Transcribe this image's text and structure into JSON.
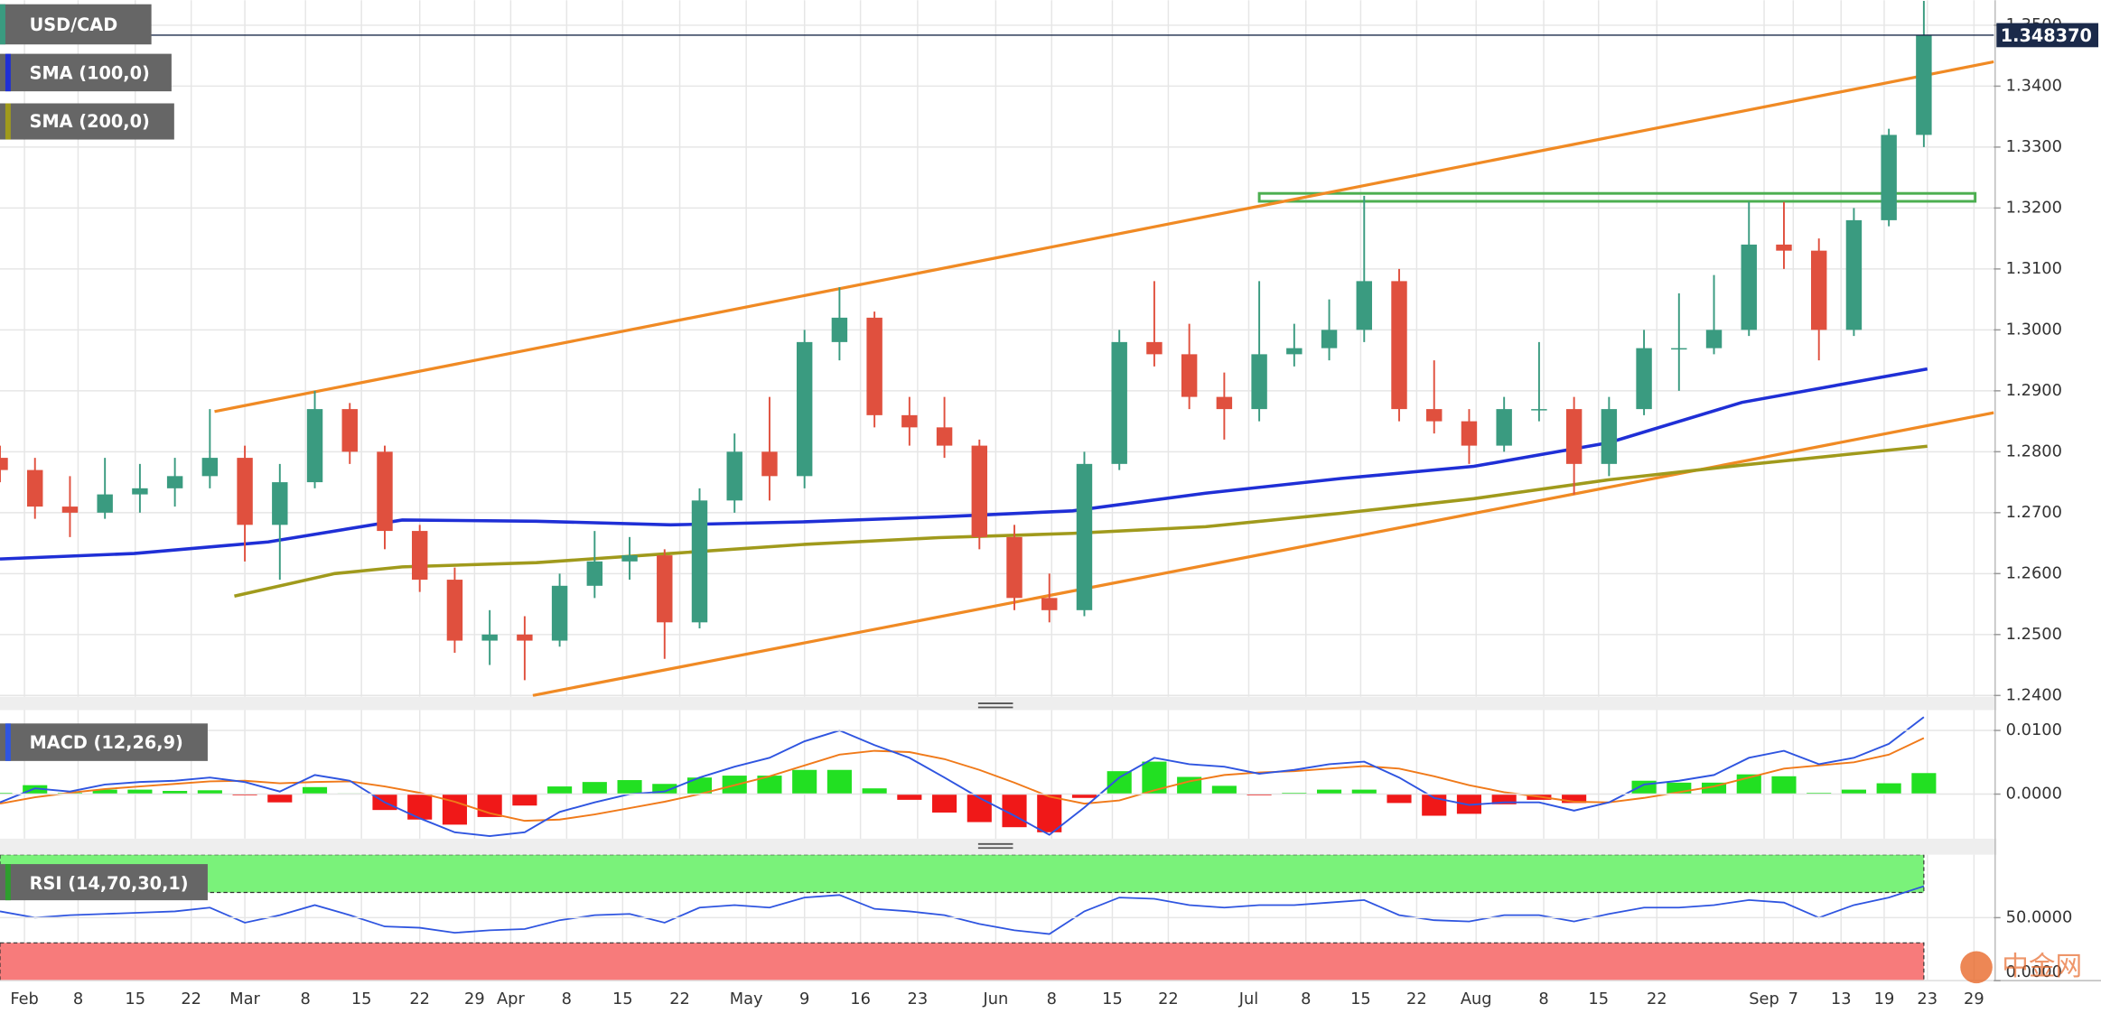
{
  "chart_data": {
    "type": "candlestick",
    "title": "USD/CAD",
    "colors": {
      "up": "#3a9b80",
      "down": "#e0503e"
    },
    "xlim": [
      0,
      171
    ],
    "xticks": [
      {
        "value": 2.1,
        "label": "Feb"
      },
      {
        "value": 6.7,
        "label": "8"
      },
      {
        "value": 11.6,
        "label": "15"
      },
      {
        "value": 16.4,
        "label": "22"
      },
      {
        "value": 21.0,
        "label": "Mar"
      },
      {
        "value": 26.2,
        "label": "8"
      },
      {
        "value": 31.0,
        "label": "15"
      },
      {
        "value": 36.0,
        "label": "22"
      },
      {
        "value": 40.7,
        "label": "29"
      },
      {
        "value": 43.8,
        "label": "Apr"
      },
      {
        "value": 48.6,
        "label": "8"
      },
      {
        "value": 53.4,
        "label": "15"
      },
      {
        "value": 58.3,
        "label": "22"
      },
      {
        "value": 64.0,
        "label": "May"
      },
      {
        "value": 69.0,
        "label": "9"
      },
      {
        "value": 73.8,
        "label": "16"
      },
      {
        "value": 78.7,
        "label": "23"
      },
      {
        "value": 85.4,
        "label": "Jun"
      },
      {
        "value": 90.2,
        "label": "8"
      },
      {
        "value": 95.4,
        "label": "15"
      },
      {
        "value": 100.2,
        "label": "22"
      },
      {
        "value": 107.1,
        "label": "Jul"
      },
      {
        "value": 112.0,
        "label": "8"
      },
      {
        "value": 116.7,
        "label": "15"
      },
      {
        "value": 121.5,
        "label": "22"
      },
      {
        "value": 126.6,
        "label": "Aug"
      },
      {
        "value": 132.4,
        "label": "8"
      },
      {
        "value": 137.1,
        "label": "15"
      },
      {
        "value": 142.1,
        "label": "22"
      },
      {
        "value": 151.3,
        "label": "Sep"
      },
      {
        "value": 153.8,
        "label": "7"
      },
      {
        "value": 157.9,
        "label": "13"
      },
      {
        "value": 161.6,
        "label": "19"
      },
      {
        "value": 165.3,
        "label": "23"
      },
      {
        "value": 169.3,
        "label": "29"
      }
    ],
    "ylim": [
      1.2398,
      1.3541
    ],
    "yticks": [
      {
        "value": 1.24,
        "label": "1.2400"
      },
      {
        "value": 1.25,
        "label": "1.2500"
      },
      {
        "value": 1.26,
        "label": "1.2600"
      },
      {
        "value": 1.27,
        "label": "1.2700"
      },
      {
        "value": 1.28,
        "label": "1.2800"
      },
      {
        "value": 1.29,
        "label": "1.2900"
      },
      {
        "value": 1.3,
        "label": "1.3000"
      },
      {
        "value": 1.31,
        "label": "1.3100"
      },
      {
        "value": 1.32,
        "label": "1.3200"
      },
      {
        "value": 1.33,
        "label": "1.3300"
      },
      {
        "value": 1.34,
        "label": "1.3400"
      },
      {
        "value": 1.35,
        "label": "1.3500"
      }
    ],
    "grid": true,
    "x": [
      0,
      3,
      6,
      9,
      12,
      15,
      18,
      21,
      24,
      27,
      30,
      33,
      36,
      39,
      42,
      45,
      48,
      51,
      54,
      57,
      60,
      63,
      66,
      69,
      72,
      75,
      78,
      81,
      84,
      87,
      90,
      93,
      96,
      99,
      102,
      105,
      108,
      111,
      114,
      117,
      120,
      123,
      126,
      129,
      132,
      135,
      138,
      141,
      144,
      147,
      150,
      153,
      156,
      159,
      162,
      165
    ],
    "open": [
      1.279,
      1.277,
      1.271,
      1.27,
      1.273,
      1.274,
      1.276,
      1.279,
      1.268,
      1.275,
      1.287,
      1.28,
      1.267,
      1.259,
      1.249,
      1.25,
      1.249,
      1.258,
      1.262,
      1.263,
      1.252,
      1.272,
      1.28,
      1.276,
      1.298,
      1.302,
      1.286,
      1.284,
      1.281,
      1.266,
      1.256,
      1.254,
      1.278,
      1.298,
      1.296,
      1.289,
      1.287,
      1.296,
      1.297,
      1.3,
      1.308,
      1.287,
      1.285,
      1.281,
      1.287,
      1.287,
      1.278,
      1.287,
      1.297,
      1.297,
      1.3,
      1.314,
      1.313,
      1.3,
      1.318,
      1.332
    ],
    "high": [
      1.281,
      1.279,
      1.276,
      1.279,
      1.278,
      1.279,
      1.287,
      1.281,
      1.278,
      1.29,
      1.288,
      1.281,
      1.268,
      1.261,
      1.254,
      1.253,
      1.26,
      1.267,
      1.266,
      1.264,
      1.274,
      1.283,
      1.289,
      1.3,
      1.307,
      1.303,
      1.289,
      1.289,
      1.282,
      1.268,
      1.26,
      1.28,
      1.3,
      1.308,
      1.301,
      1.293,
      1.308,
      1.301,
      1.305,
      1.322,
      1.31,
      1.295,
      1.287,
      1.289,
      1.298,
      1.289,
      1.289,
      1.3,
      1.306,
      1.309,
      1.321,
      1.321,
      1.315,
      1.32,
      1.333,
      1.354
    ],
    "low": [
      1.275,
      1.269,
      1.266,
      1.269,
      1.27,
      1.271,
      1.274,
      1.262,
      1.259,
      1.274,
      1.278,
      1.264,
      1.257,
      1.247,
      1.245,
      1.2425,
      1.248,
      1.256,
      1.259,
      1.246,
      1.251,
      1.27,
      1.272,
      1.274,
      1.295,
      1.284,
      1.281,
      1.279,
      1.264,
      1.254,
      1.252,
      1.253,
      1.277,
      1.294,
      1.287,
      1.282,
      1.285,
      1.294,
      1.295,
      1.298,
      1.285,
      1.283,
      1.278,
      1.28,
      1.285,
      1.273,
      1.276,
      1.286,
      1.29,
      1.296,
      1.299,
      1.31,
      1.295,
      1.299,
      1.317,
      1.33
    ],
    "close": [
      1.277,
      1.271,
      1.27,
      1.273,
      1.274,
      1.276,
      1.279,
      1.268,
      1.275,
      1.287,
      1.28,
      1.267,
      1.259,
      1.249,
      1.25,
      1.249,
      1.258,
      1.262,
      1.263,
      1.252,
      1.272,
      1.28,
      1.276,
      1.298,
      1.302,
      1.286,
      1.284,
      1.281,
      1.266,
      1.256,
      1.254,
      1.278,
      1.298,
      1.296,
      1.289,
      1.287,
      1.296,
      1.297,
      1.3,
      1.308,
      1.287,
      1.285,
      1.281,
      1.287,
      1.287,
      1.278,
      1.287,
      1.297,
      1.297,
      1.3,
      1.314,
      1.313,
      1.3,
      1.318,
      1.332,
      1.3484
    ],
    "last_price": {
      "value": 1.34837,
      "label": "1.348370"
    },
    "overlays": [
      {
        "name": "SMA (100,0)",
        "color": "#1f2fd6",
        "x": [
          0,
          11.5,
          23,
          34.5,
          46,
          57.5,
          69,
          80.5,
          92,
          103.4,
          115,
          126.4,
          138,
          149.4,
          165.3
        ],
        "values": [
          1.2624,
          1.2633,
          1.2652,
          1.2688,
          1.2686,
          1.268,
          1.2685,
          1.2693,
          1.2703,
          1.2732,
          1.2756,
          1.2776,
          1.2815,
          1.2881,
          1.2936
        ]
      },
      {
        "name": "SMA (200,0)",
        "color": "#a09a1c",
        "x": [
          20.1,
          28.7,
          34.5,
          46,
          57.5,
          69,
          80.5,
          92,
          103.4,
          115,
          126.4,
          138,
          149.4,
          165.3
        ],
        "values": [
          1.2563,
          1.26,
          1.2611,
          1.2618,
          1.2633,
          1.2648,
          1.2659,
          1.2666,
          1.2677,
          1.2699,
          1.2723,
          1.2754,
          1.2778,
          1.2809
        ]
      }
    ],
    "trend_lines": [
      {
        "color": "#f08a24",
        "x": [
          18.4,
          171
        ],
        "values": [
          1.2866,
          1.344
        ]
      },
      {
        "color": "#f08a24",
        "x": [
          45.7,
          171
        ],
        "values": [
          1.24,
          1.2864
        ]
      }
    ],
    "zone": {
      "color": "#4caf50",
      "x": [
        108.0,
        169.4
      ],
      "values": [
        1.3211,
        1.3224
      ]
    },
    "indicators": [
      {
        "type": "macd",
        "title": "MACD (12,26,9)",
        "ylim": [
          -0.007,
          0.0132
        ],
        "yticks": [
          {
            "value": 0.01,
            "label": "0.0100"
          },
          {
            "value": 0,
            "label": "0.0000"
          }
        ],
        "macd": {
          "color": "#2f55e0",
          "values": [
            -0.0013,
            0.0009,
            0.0004,
            0.0015,
            0.0019,
            0.0021,
            0.0026,
            0.0019,
            0.0004,
            0.003,
            0.0021,
            -0.0013,
            -0.0038,
            -0.006,
            -0.0066,
            -0.006,
            -0.0028,
            -0.0013,
            0.0,
            0.0004,
            0.0026,
            0.0043,
            0.0057,
            0.0083,
            0.01,
            0.0077,
            0.0057,
            0.0026,
            -0.0006,
            -0.0034,
            -0.0064,
            -0.0021,
            0.0026,
            0.0057,
            0.0047,
            0.0043,
            0.0032,
            0.0038,
            0.0047,
            0.0051,
            0.0026,
            -0.0006,
            -0.0017,
            -0.0013,
            -0.0013,
            -0.0026,
            -0.0013,
            0.0015,
            0.0021,
            0.003,
            0.0057,
            0.0068,
            0.0047,
            0.0057,
            0.0079,
            0.0121
          ]
        },
        "signal": {
          "color": "#f07a1a",
          "values": [
            -0.0015,
            -0.0005,
            0.0002,
            0.0008,
            0.0012,
            0.0016,
            0.002,
            0.0021,
            0.0017,
            0.0019,
            0.002,
            0.0012,
            0.0002,
            -0.0012,
            -0.003,
            -0.0042,
            -0.004,
            -0.0032,
            -0.0022,
            -0.0012,
            0.0,
            0.0014,
            0.0028,
            0.0045,
            0.0062,
            0.0068,
            0.0066,
            0.0055,
            0.0038,
            0.0018,
            -0.0004,
            -0.0015,
            -0.001,
            0.0006,
            0.002,
            0.003,
            0.0034,
            0.0036,
            0.004,
            0.0044,
            0.004,
            0.0028,
            0.0014,
            0.0003,
            -0.0004,
            -0.0012,
            -0.0013,
            -0.0006,
            0.0003,
            0.0012,
            0.0026,
            0.004,
            0.0045,
            0.005,
            0.0062,
            0.0088
          ]
        },
        "histogram": {
          "up": "#22e022",
          "down": "#f01818",
          "values": [
            0.0002,
            0.0014,
            0.0002,
            0.0007,
            0.0007,
            0.0005,
            0.0006,
            -0.0002,
            -0.0013,
            0.0011,
            0.0001,
            -0.0025,
            -0.004,
            -0.0048,
            -0.0036,
            -0.0018,
            0.0012,
            0.0019,
            0.0022,
            0.0016,
            0.0026,
            0.0029,
            0.0029,
            0.0038,
            0.0038,
            0.0009,
            -0.0009,
            -0.0029,
            -0.0044,
            -0.0052,
            -0.006,
            -0.0006,
            0.0036,
            0.0051,
            0.0027,
            0.0013,
            -0.0002,
            0.0002,
            0.0007,
            0.0007,
            -0.0014,
            -0.0034,
            -0.0031,
            -0.0016,
            -0.0009,
            -0.0014,
            0.0,
            0.0021,
            0.0018,
            0.0018,
            0.0031,
            0.0028,
            0.0002,
            0.0007,
            0.0017,
            0.0033
          ]
        }
      },
      {
        "type": "rsi",
        "title": "RSI (14,70,30,1)",
        "ylim": [
          0,
          100
        ],
        "yticks": [
          {
            "value": 50,
            "label": "50.0000"
          },
          {
            "value": 0,
            "label": "0.0000"
          }
        ],
        "bands": [
          {
            "from": 70,
            "to": 100,
            "color": "#7af27a"
          },
          {
            "from": 0,
            "to": 30,
            "color": "#f77b7b"
          }
        ],
        "rsi": {
          "color": "#2f55e0",
          "values": [
            55,
            50,
            52,
            53,
            54,
            55,
            58,
            46,
            52,
            60,
            52,
            43,
            42,
            38,
            40,
            41,
            48,
            52,
            53,
            46,
            58,
            60,
            58,
            66,
            68,
            57,
            55,
            52,
            45,
            40,
            37,
            55,
            66,
            65,
            60,
            58,
            60,
            60,
            62,
            64,
            52,
            48,
            47,
            52,
            52,
            47,
            53,
            58,
            58,
            60,
            64,
            62,
            50,
            60,
            66,
            75
          ]
        }
      }
    ]
  },
  "watermark": "中金网"
}
